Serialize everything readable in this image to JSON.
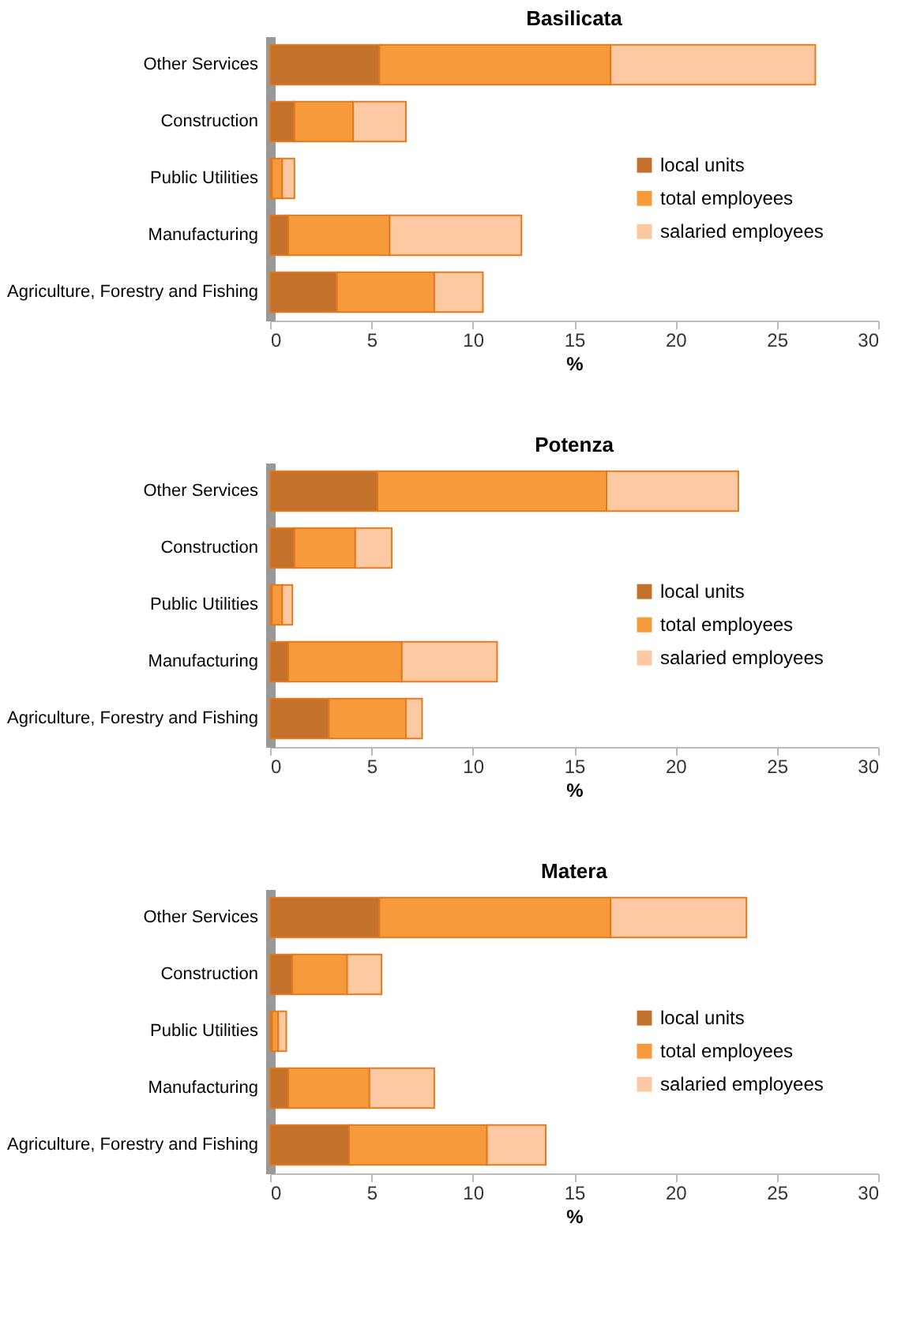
{
  "chart_data": [
    {
      "type": "bar",
      "orientation": "horizontal",
      "stacked": true,
      "title": "Basilicata",
      "xlabel": "%",
      "categories": [
        "Other Services",
        "Construction",
        "Public Utilities",
        "Manufacturing",
        "Agriculture, Forestry and Fishing"
      ],
      "series": [
        {
          "name": "local units",
          "color": "#c4722b",
          "values": [
            5.4,
            1.2,
            0.1,
            0.9,
            3.3
          ]
        },
        {
          "name": "total employees",
          "color": "#f79a3c",
          "values": [
            11.4,
            2.9,
            0.5,
            5.0,
            4.8
          ]
        },
        {
          "name": "salaried employees",
          "color": "#fcc9a3",
          "values": [
            10.1,
            2.6,
            0.6,
            6.5,
            2.4
          ]
        }
      ],
      "xlim": [
        0,
        30
      ],
      "xticks": [
        0,
        5,
        10,
        15,
        20,
        25,
        30
      ],
      "legend": "right",
      "grid": false
    },
    {
      "type": "bar",
      "orientation": "horizontal",
      "stacked": true,
      "title": "Potenza",
      "xlabel": "%",
      "categories": [
        "Other Services",
        "Construction",
        "Public Utilities",
        "Manufacturing",
        "Agriculture, Forestry and Fishing"
      ],
      "series": [
        {
          "name": "local units",
          "color": "#c4722b",
          "values": [
            5.3,
            1.2,
            0.1,
            0.9,
            2.9
          ]
        },
        {
          "name": "total employees",
          "color": "#f79a3c",
          "values": [
            11.3,
            3.0,
            0.5,
            5.6,
            3.8
          ]
        },
        {
          "name": "salaried employees",
          "color": "#fcc9a3",
          "values": [
            6.5,
            1.8,
            0.5,
            4.7,
            0.8
          ]
        }
      ],
      "xlim": [
        0,
        30
      ],
      "xticks": [
        0,
        5,
        10,
        15,
        20,
        25,
        30
      ],
      "legend": "right",
      "grid": false
    },
    {
      "type": "bar",
      "orientation": "horizontal",
      "stacked": true,
      "title": "Matera",
      "xlabel": "%",
      "categories": [
        "Other Services",
        "Construction",
        "Public Utilities",
        "Manufacturing",
        "Agriculture, Forestry and Fishing"
      ],
      "series": [
        {
          "name": "local units",
          "color": "#c4722b",
          "values": [
            5.4,
            1.1,
            0.1,
            0.9,
            3.9
          ]
        },
        {
          "name": "total employees",
          "color": "#f79a3c",
          "values": [
            11.4,
            2.7,
            0.3,
            4.0,
            6.8
          ]
        },
        {
          "name": "salaried employees",
          "color": "#fcc9a3",
          "values": [
            6.7,
            1.7,
            0.4,
            3.2,
            2.9
          ]
        }
      ],
      "xlim": [
        0,
        30
      ],
      "xticks": [
        0,
        5,
        10,
        15,
        20,
        25,
        30
      ],
      "legend": "right",
      "grid": false
    }
  ]
}
